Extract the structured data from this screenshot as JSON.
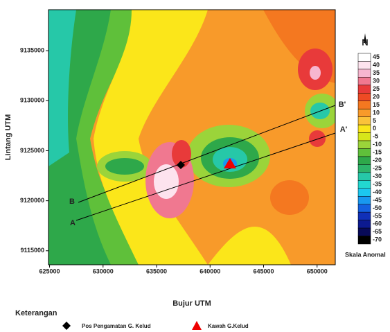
{
  "map": {
    "x_label": "Bujur UTM",
    "y_label": "Lintang UTM",
    "xlim": [
      624900,
      651700
    ],
    "ylim": [
      9113600,
      9139100
    ],
    "xticks": [
      625000,
      630000,
      635000,
      640000,
      645000,
      650000
    ],
    "yticks": [
      9115000,
      9120000,
      9125000,
      9130000,
      9135000
    ],
    "profiles": [
      "A",
      "A'",
      "B",
      "B'"
    ]
  },
  "north": "N",
  "colorbar": {
    "title": "Skala Anomal",
    "levels": [
      {
        "value": 45,
        "color": "#ffffff"
      },
      {
        "value": 40,
        "color": "#fde3ee"
      },
      {
        "value": 35,
        "color": "#f7b6cf"
      },
      {
        "value": 30,
        "color": "#f07890"
      },
      {
        "value": 25,
        "color": "#e83a3a"
      },
      {
        "value": 20,
        "color": "#ee4a24"
      },
      {
        "value": 15,
        "color": "#f47820"
      },
      {
        "value": 10,
        "color": "#f89a2a"
      },
      {
        "value": 5,
        "color": "#fbc23a"
      },
      {
        "value": 0,
        "color": "#fbe61a"
      },
      {
        "value": -5,
        "color": "#d7e61a"
      },
      {
        "value": -10,
        "color": "#9bd43a"
      },
      {
        "value": -15,
        "color": "#5fc03a"
      },
      {
        "value": -20,
        "color": "#2ea84a"
      },
      {
        "value": -25,
        "color": "#2db46a"
      },
      {
        "value": -30,
        "color": "#26c8a8"
      },
      {
        "value": -35,
        "color": "#22d8d0"
      },
      {
        "value": -40,
        "color": "#1cc8f0"
      },
      {
        "value": -45,
        "color": "#1898f0"
      },
      {
        "value": -50,
        "color": "#1460e0"
      },
      {
        "value": -55,
        "color": "#1030b8"
      },
      {
        "value": -60,
        "color": "#0c1a90"
      },
      {
        "value": -65,
        "color": "#080a58"
      },
      {
        "value": -70,
        "color": "#000000"
      }
    ]
  },
  "legend": {
    "title": "Keterangan",
    "items": [
      "Pos Pengamatan G. Kelud",
      "Kawah G.Kelud"
    ]
  }
}
